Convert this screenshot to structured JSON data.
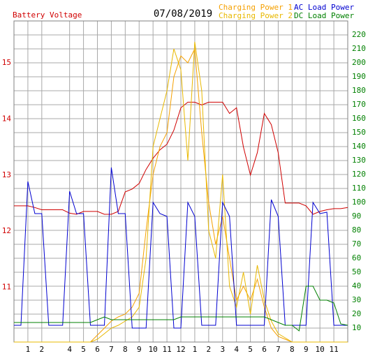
{
  "chart_data": {
    "type": "line",
    "title": "07/08/2019",
    "x": [
      0,
      0.5,
      1,
      1.5,
      2,
      2.5,
      3,
      3.5,
      4,
      4.5,
      5,
      5.5,
      6,
      6.5,
      7,
      7.5,
      8,
      8.5,
      9,
      9.5,
      10,
      10.5,
      11,
      11.5,
      12,
      12.5,
      13,
      13.5,
      14,
      14.5,
      15,
      15.5,
      16,
      16.5,
      17,
      17.5,
      18,
      18.5,
      19,
      19.5,
      20,
      20.5,
      21,
      21.5,
      22,
      22.5,
      23,
      23.5,
      24
    ],
    "xlim": [
      0,
      24
    ],
    "xticks": [
      1,
      2,
      4,
      5,
      6,
      7,
      8,
      9,
      10,
      11,
      12,
      {
        "value": 13,
        "label": "1"
      },
      {
        "value": 14,
        "label": "2"
      },
      {
        "value": 15,
        "label": "3"
      },
      {
        "value": 16,
        "label": "4"
      },
      {
        "value": 17,
        "label": "5"
      },
      {
        "value": 18,
        "label": "6"
      },
      {
        "value": 19,
        "label": "7"
      },
      {
        "value": 20,
        "label": "8"
      },
      {
        "value": 21,
        "label": "9"
      },
      {
        "value": 22,
        "label": "10"
      },
      {
        "value": 23,
        "label": "11"
      }
    ],
    "ylim": [
      10.02,
      15.75
    ],
    "yticks": [
      11,
      12,
      13,
      14,
      15
    ],
    "y2lim": [
      0,
      230
    ],
    "y2ticks": [
      10,
      20,
      30,
      40,
      50,
      60,
      70,
      80,
      90,
      100,
      110,
      120,
      130,
      140,
      150,
      160,
      170,
      180,
      190,
      200,
      210,
      220
    ],
    "grid": true,
    "series": [
      {
        "name": "Battery Voltage",
        "color": "#d00000",
        "axis": "y",
        "values": [
          12.45,
          12.45,
          12.45,
          12.42,
          12.38,
          12.38,
          12.38,
          12.38,
          12.32,
          12.3,
          12.35,
          12.35,
          12.35,
          12.3,
          12.3,
          12.35,
          12.7,
          12.75,
          12.85,
          13.1,
          13.3,
          13.45,
          13.55,
          13.8,
          14.2,
          14.3,
          14.3,
          14.25,
          14.3,
          14.3,
          14.3,
          14.1,
          14.2,
          13.5,
          13.0,
          13.4,
          14.1,
          13.9,
          13.4,
          12.5,
          12.5,
          12.5,
          12.45,
          12.3,
          12.35,
          12.38,
          12.4,
          12.4,
          12.42
        ]
      },
      {
        "name": "Charging Power 1",
        "color": "#f5a000",
        "axis": "y2",
        "values": [
          0,
          0,
          0,
          0,
          0,
          0,
          0,
          0,
          0,
          0,
          0,
          0,
          5,
          10,
          15,
          18,
          20,
          25,
          35,
          80,
          120,
          140,
          150,
          190,
          205,
          200,
          210,
          150,
          100,
          70,
          90,
          60,
          30,
          40,
          30,
          45,
          25,
          10,
          4,
          2,
          0,
          0,
          0,
          0,
          0,
          0,
          0,
          0,
          0
        ]
      },
      {
        "name": "Charging Power 2",
        "color": "#e8b800",
        "axis": "y2",
        "values": [
          0,
          0,
          0,
          0,
          0,
          0,
          0,
          0,
          0,
          0,
          0,
          0,
          2,
          6,
          10,
          12,
          15,
          18,
          25,
          60,
          140,
          160,
          180,
          210,
          195,
          130,
          215,
          180,
          80,
          60,
          120,
          40,
          25,
          50,
          20,
          55,
          30,
          15,
          6,
          3,
          0,
          0,
          0,
          0,
          0,
          0,
          0,
          0,
          0
        ]
      },
      {
        "name": "AC Load Power",
        "color": "#0000d0",
        "axis": "y2",
        "values": [
          12,
          12,
          115,
          92,
          92,
          12,
          12,
          12,
          108,
          92,
          92,
          12,
          12,
          12,
          125,
          92,
          92,
          10,
          10,
          10,
          100,
          92,
          90,
          10,
          10,
          100,
          90,
          12,
          12,
          12,
          100,
          90,
          12,
          12,
          12,
          12,
          12,
          102,
          90,
          12,
          12,
          12,
          12,
          100,
          92,
          93,
          12,
          12,
          12
        ]
      },
      {
        "name": "DC Load Power",
        "color": "#008000",
        "axis": "y2",
        "values": [
          14,
          14,
          14,
          14,
          14,
          14,
          14,
          14,
          14,
          14,
          14,
          14,
          16,
          18,
          16,
          16,
          16,
          16,
          16,
          16,
          16,
          16,
          16,
          16,
          18,
          18,
          18,
          18,
          18,
          18,
          18,
          18,
          18,
          18,
          18,
          18,
          18,
          16,
          14,
          12,
          12,
          8,
          40,
          40,
          30,
          30,
          28,
          13,
          12
        ]
      }
    ]
  }
}
